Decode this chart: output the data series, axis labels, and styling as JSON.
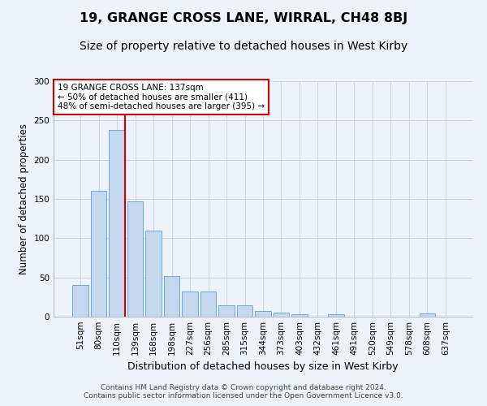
{
  "title": "19, GRANGE CROSS LANE, WIRRAL, CH48 8BJ",
  "subtitle": "Size of property relative to detached houses in West Kirby",
  "xlabel": "Distribution of detached houses by size in West Kirby",
  "ylabel": "Number of detached properties",
  "footer1": "Contains HM Land Registry data © Crown copyright and database right 2024.",
  "footer2": "Contains public sector information licensed under the Open Government Licence v3.0.",
  "bar_labels": [
    "51sqm",
    "80sqm",
    "110sqm",
    "139sqm",
    "168sqm",
    "198sqm",
    "227sqm",
    "256sqm",
    "285sqm",
    "315sqm",
    "344sqm",
    "373sqm",
    "403sqm",
    "432sqm",
    "461sqm",
    "491sqm",
    "520sqm",
    "549sqm",
    "578sqm",
    "608sqm",
    "637sqm"
  ],
  "bar_values": [
    40,
    160,
    238,
    147,
    110,
    52,
    32,
    32,
    15,
    14,
    7,
    5,
    3,
    0,
    3,
    0,
    0,
    0,
    0,
    4,
    0
  ],
  "bar_color": "#c5d8f0",
  "bar_edge_color": "#6aaad4",
  "annotation_text": "19 GRANGE CROSS LANE: 137sqm\n← 50% of detached houses are smaller (411)\n48% of semi-detached houses are larger (395) →",
  "annotation_box_color": "#ffffff",
  "annotation_box_edge": "#cc0000",
  "vline_color": "#cc0000",
  "ylim": [
    0,
    300
  ],
  "yticks": [
    0,
    50,
    100,
    150,
    200,
    250,
    300
  ],
  "title_fontsize": 11.5,
  "subtitle_fontsize": 10,
  "xlabel_fontsize": 9,
  "ylabel_fontsize": 8.5,
  "tick_fontsize": 7.5,
  "annotation_fontsize": 7.5,
  "footer_fontsize": 6.5,
  "background_color": "#eef2fa"
}
